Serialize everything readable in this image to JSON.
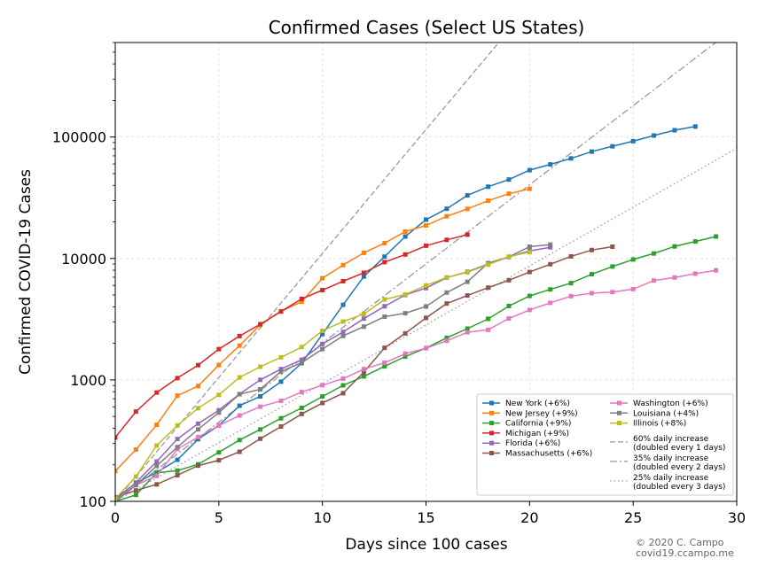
{
  "chart_data": {
    "type": "line",
    "title": "Confirmed Cases (Select US States)",
    "xlabel": "Days since 100 cases",
    "ylabel": "Confirmed COVID-19 Cases",
    "xlim": [
      0,
      30
    ],
    "ylim": [
      100,
      600000
    ],
    "yscale": "log",
    "grid": true,
    "legend_position": "lower-right",
    "x_ticks": [
      0,
      5,
      10,
      15,
      20,
      25,
      30
    ],
    "y_ticks": [
      100,
      1000,
      10000,
      100000
    ],
    "y_tick_labels": [
      "100",
      "1000",
      "10000",
      "100000"
    ],
    "series": [
      {
        "name": "New York (+6%)",
        "color": "#1f77b4",
        "marker": "square",
        "x": [
          0,
          1,
          2,
          3,
          4,
          5,
          6,
          7,
          8,
          9,
          10,
          11,
          12,
          13,
          14,
          15,
          16,
          17,
          18,
          19,
          20,
          21,
          22,
          23,
          24,
          25,
          26,
          27,
          28
        ],
        "y": [
          105,
          142,
          173,
          220,
          325,
          421,
          613,
          732,
          967,
          1374,
          2382,
          4152,
          7102,
          10356,
          15168,
          20875,
          25665,
          33066,
          38987,
          44635,
          53363,
          59513,
          66663,
          75833,
          83889,
          92381,
          102863,
          113704,
          122031
        ]
      },
      {
        "name": "New Jersey (+9%)",
        "color": "#ff7f0e",
        "marker": "square",
        "x": [
          0,
          1,
          2,
          3,
          4,
          5,
          6,
          7,
          8,
          9,
          10,
          11,
          12,
          13,
          14,
          15,
          16,
          17,
          18,
          19,
          20
        ],
        "y": [
          178,
          267,
          427,
          742,
          890,
          1327,
          1914,
          2844,
          3675,
          4402,
          6876,
          8825,
          11124,
          13386,
          16636,
          18696,
          22255,
          25590,
          29895,
          34124,
          37505
        ]
      },
      {
        "name": "California (+9%)",
        "color": "#2ca02c",
        "marker": "square",
        "x": [
          0,
          1,
          2,
          3,
          4,
          5,
          6,
          7,
          8,
          9,
          10,
          11,
          12,
          13,
          14,
          15,
          16,
          17,
          18,
          19,
          20,
          21,
          22,
          23,
          24,
          25,
          26,
          27,
          28,
          29
        ],
        "y": [
          100,
          113,
          172,
          179,
          202,
          253,
          320,
          391,
          483,
          588,
          731,
          902,
          1069,
          1293,
          1557,
          1829,
          2221,
          2644,
          3183,
          4060,
          4914,
          5563,
          6266,
          7421,
          8582,
          9816,
          10996,
          12569,
          13796,
          15170
        ]
      },
      {
        "name": "Michigan (+9%)",
        "color": "#d62728",
        "marker": "square",
        "x": [
          0,
          1,
          2,
          3,
          4,
          5,
          6,
          7,
          8,
          9,
          10,
          11,
          12,
          13,
          14,
          15,
          16,
          17
        ],
        "y": [
          336,
          549,
          787,
          1035,
          1324,
          1793,
          2296,
          2877,
          3657,
          4650,
          5488,
          6498,
          7615,
          9334,
          10791,
          12744,
          14225,
          15718
        ]
      },
      {
        "name": "Florida (+6%)",
        "color": "#9467bd",
        "marker": "square",
        "x": [
          0,
          1,
          2,
          3,
          4,
          5,
          6,
          7,
          8,
          9,
          10,
          11,
          12,
          13,
          14,
          15,
          16,
          17,
          18,
          19,
          20,
          21
        ],
        "y": [
          103,
          143,
          213,
          326,
          436,
          563,
          764,
          1001,
          1227,
          1467,
          1977,
          2484,
          3198,
          4038,
          5004,
          5704,
          6955,
          7773,
          9008,
          10268,
          11545,
          12350
        ]
      },
      {
        "name": "Massachusetts (+6%)",
        "color": "#8c564b",
        "marker": "square",
        "x": [
          0,
          1,
          2,
          3,
          4,
          5,
          6,
          7,
          8,
          9,
          10,
          11,
          12,
          13,
          14,
          15,
          16,
          17,
          18,
          19,
          20,
          21,
          22,
          23,
          24
        ],
        "y": [
          108,
          123,
          138,
          164,
          197,
          218,
          256,
          328,
          413,
          525,
          646,
          777,
          1159,
          1838,
          2417,
          3240,
          4257,
          4955,
          5752,
          6620,
          7738,
          8966,
          10402,
          11736,
          12500
        ]
      },
      {
        "name": "Washington (+6%)",
        "color": "#e377c2",
        "marker": "square",
        "x": [
          0,
          1,
          2,
          3,
          4,
          5,
          6,
          7,
          8,
          9,
          10,
          11,
          12,
          13,
          14,
          15,
          16,
          17,
          18,
          19,
          20,
          21,
          22,
          23,
          24,
          25,
          26,
          27,
          28,
          29
        ],
        "y": [
          102,
          136,
          162,
          270,
          338,
          421,
          509,
          602,
          672,
          794,
          904,
          1025,
          1228,
          1386,
          1646,
          1823,
          2101,
          2469,
          2585,
          3207,
          3768,
          4310,
          4896,
          5179,
          5292,
          5588,
          6585,
          6966,
          7498,
          7984
        ]
      },
      {
        "name": "Louisiana (+4%)",
        "color": "#7f7f7f",
        "marker": "square",
        "x": [
          0,
          1,
          2,
          3,
          4,
          5,
          6,
          7,
          8,
          9,
          10,
          11,
          12,
          13,
          14,
          15,
          16,
          17,
          18,
          19,
          20,
          21
        ],
        "y": [
          100,
          136,
          196,
          280,
          392,
          538,
          763,
          837,
          1172,
          1388,
          1795,
          2304,
          2746,
          3315,
          3540,
          4025,
          5237,
          6424,
          9150,
          10297,
          12496,
          13010
        ]
      },
      {
        "name": "Illinois (+8%)",
        "color": "#bcbd22",
        "marker": "square",
        "x": [
          0,
          1,
          2,
          3,
          4,
          5,
          6,
          7,
          8,
          9,
          10,
          11,
          12,
          13,
          14,
          15,
          16,
          17,
          18,
          19,
          20
        ],
        "y": [
          105,
          160,
          288,
          422,
          585,
          753,
          1049,
          1285,
          1535,
          1865,
          2538,
          3026,
          3491,
          4596,
          5057,
          5994,
          6980,
          7695,
          8904,
          10357,
          11256
        ]
      }
    ],
    "reference_lines": [
      {
        "name": "60% daily increase\n(doubled every 1 days)",
        "label_lines": [
          "60% daily increase",
          "(doubled every 1 days)"
        ],
        "rate": 0.6,
        "style": "dashed",
        "color": "#999999"
      },
      {
        "name": "35% daily increase\n(doubled every 2 days)",
        "label_lines": [
          "35% daily increase",
          "(doubled every 2 days)"
        ],
        "rate": 0.35,
        "style": "dashdot",
        "color": "#999999"
      },
      {
        "name": "25% daily increase\n(doubled every 3 days)",
        "label_lines": [
          "25% daily increase",
          "(doubled every 3 days)"
        ],
        "rate": 0.25,
        "style": "dotted",
        "color": "#999999"
      }
    ],
    "credit_lines": [
      "© 2020 C. Campo",
      "covid19.ccampo.me"
    ]
  }
}
